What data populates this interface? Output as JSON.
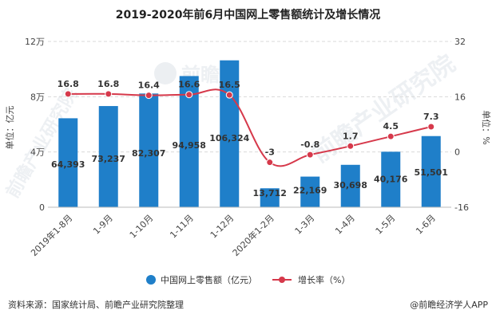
{
  "title": "2019-2020年前6月中国网上零售额统计及增长情况",
  "source": "资料来源：国家统计局、前瞻产业研究院整理",
  "brand": "@前瞻经济学人APP",
  "watermark": "前瞻产业研究院",
  "watermark_logo": "前瞻",
  "colors": {
    "bar": "#1f7fc9",
    "line": "#d6394b",
    "grid": "#d9d9d9"
  },
  "chart_data": {
    "type": "bar",
    "categories": [
      "2019年1-8月",
      "1-9月",
      "1-10月",
      "1-11月",
      "1-12月",
      "2020年1-2月",
      "1-3月",
      "1-4月",
      "1-5月",
      "1-6月"
    ],
    "series": [
      {
        "name": "中国网上零售额（亿元）",
        "type": "bar",
        "axis": "left",
        "values": [
          64393,
          73237,
          82307,
          94958,
          106324,
          13712,
          22169,
          30698,
          40176,
          51501
        ],
        "labels": [
          "64,393",
          "73,237",
          "82,307",
          "94,958",
          "106,324",
          "13,712",
          "22,169",
          "30,698",
          "40,176",
          "51,501"
        ]
      },
      {
        "name": "增长率（%）",
        "type": "line",
        "axis": "right",
        "values": [
          16.8,
          16.8,
          16.4,
          16.6,
          16.5,
          -3,
          -0.8,
          1.7,
          4.5,
          7.3
        ],
        "labels": [
          "16.8",
          "16.8",
          "16.4",
          "16.6",
          "16.5",
          "-3",
          "-0.8",
          "1.7",
          "4.5",
          "7.3"
        ]
      }
    ],
    "ylabel": "单位：亿元",
    "y2label": "单位：%",
    "ylim": [
      0,
      120000
    ],
    "y2lim": [
      -16,
      32
    ],
    "yticks": [
      {
        "value": 0,
        "label": "0"
      },
      {
        "value": 40000,
        "label": "4万"
      },
      {
        "value": 80000,
        "label": "8万"
      },
      {
        "value": 120000,
        "label": "12万"
      }
    ],
    "y2ticks": [
      {
        "value": -16,
        "label": "-16"
      },
      {
        "value": 0,
        "label": "0"
      },
      {
        "value": 16,
        "label": "16"
      },
      {
        "value": 32,
        "label": "32"
      }
    ],
    "grid": true,
    "legend_position": "bottom"
  }
}
